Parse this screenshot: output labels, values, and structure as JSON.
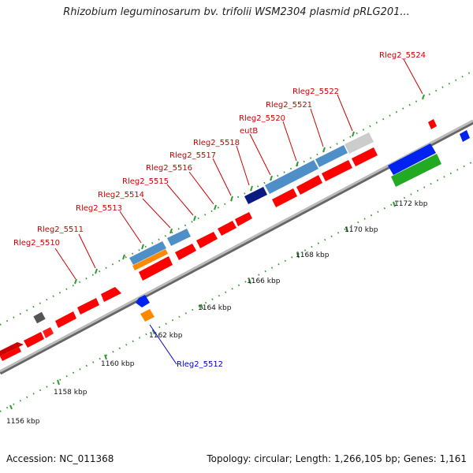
{
  "title": "Rhizobium leguminosarum bv. trifolii WSM2304 plasmid pRLG201...",
  "footer": {
    "accession": "Accession: NC_011368",
    "summary": "Topology: circular; Length: 1,266,105 bp; Genes: 1,161"
  },
  "colors": {
    "cds": "#ff0000",
    "label_top": "#cc0000",
    "label_bottom": "#0000cc",
    "backbone": "#999999",
    "tick_outer": "#339933",
    "blue": "#0022ee",
    "steel": "#4f8fc8",
    "navy": "#0a1a80",
    "grey": "#bbbbbb",
    "green": "#22aa22",
    "orange": "#ff8800"
  },
  "scale_labels": [
    "1156 kbp",
    "1158 kbp",
    "1160 kbp",
    "1162 kbp",
    "1164 kbp",
    "1166 kbp",
    "1168 kbp",
    "1170 kbp",
    "1172 kbp"
  ],
  "gene_labels_top": [
    "Rleg2_5510",
    "Rleg2_5511",
    "Rleg2_5513",
    "Rleg2_5514",
    "Rleg2_5515",
    "Rleg2_5516",
    "Rleg2_5517",
    "Rleg2_5518",
    "eutB",
    "Rleg2_5520",
    "Rleg2_5521",
    "Rleg2_5522",
    "Rleg2_5524"
  ],
  "gene_labels_bottom": [
    "Rleg2_5512"
  ]
}
